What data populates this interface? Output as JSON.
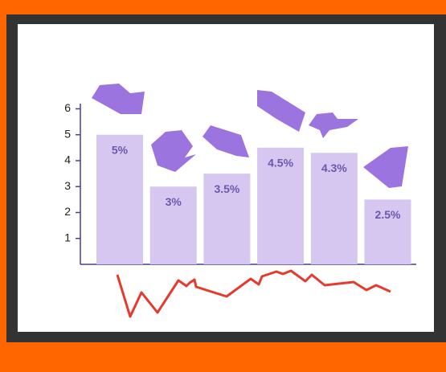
{
  "chart_data": {
    "type": "bar",
    "values": [
      5,
      3,
      3.5,
      4.5,
      4.3,
      2.5
    ],
    "value_labels": [
      "5%",
      "3%",
      "3.5%",
      "4.5%",
      "4.3%",
      "2.5%"
    ],
    "color": "#d5c7f0",
    "ylim": [
      0,
      6.2
    ],
    "yticks": [
      1,
      2,
      3,
      4,
      5,
      6
    ]
  }
}
